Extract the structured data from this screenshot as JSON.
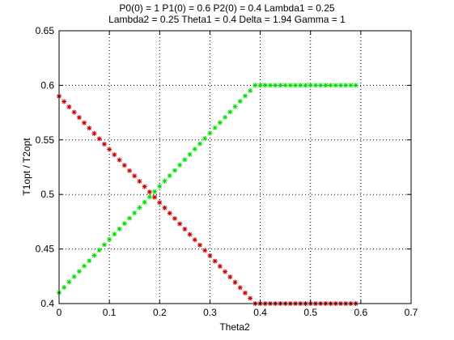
{
  "chart_data": {
    "type": "scatter",
    "title_lines": [
      "P0(0) = 1 P1(0) = 0.6 P2(0) = 0.4 Lambda1 = 0.25",
      "Lambda2 = 0.25 Theta1 = 0.4 Delta = 1.94 Gamma = 1"
    ],
    "xlabel": "Theta2",
    "ylabel": "T1opt / T2opt",
    "xlim": [
      0,
      0.7
    ],
    "ylim": [
      0.4,
      0.65
    ],
    "xticks": [
      "0",
      "0.1",
      "0.2",
      "0.3",
      "0.4",
      "0.5",
      "0.6",
      "0.7"
    ],
    "yticks": [
      "0.4",
      "0.45",
      "0.5",
      "0.55",
      "0.6",
      "0.65"
    ],
    "grid": true,
    "x_range": {
      "start": 0,
      "end": 0.59,
      "step": 0.01
    },
    "series": [
      {
        "marker": "asterisk",
        "color": "#00e000",
        "segments": [
          {
            "x_from": 0,
            "x_to": 0.39,
            "y_from": 0.41,
            "y_to": 0.6
          },
          {
            "x_from": 0.39,
            "x_to": 0.59,
            "y_from": 0.6,
            "y_to": 0.6
          }
        ]
      },
      {
        "marker": "asterisk",
        "color": "#cc0000",
        "segments": [
          {
            "x_from": 0,
            "x_to": 0.39,
            "y_from": 0.59,
            "y_to": 0.4
          },
          {
            "x_from": 0.39,
            "x_to": 0.59,
            "y_from": 0.4,
            "y_to": 0.4
          }
        ]
      }
    ]
  }
}
